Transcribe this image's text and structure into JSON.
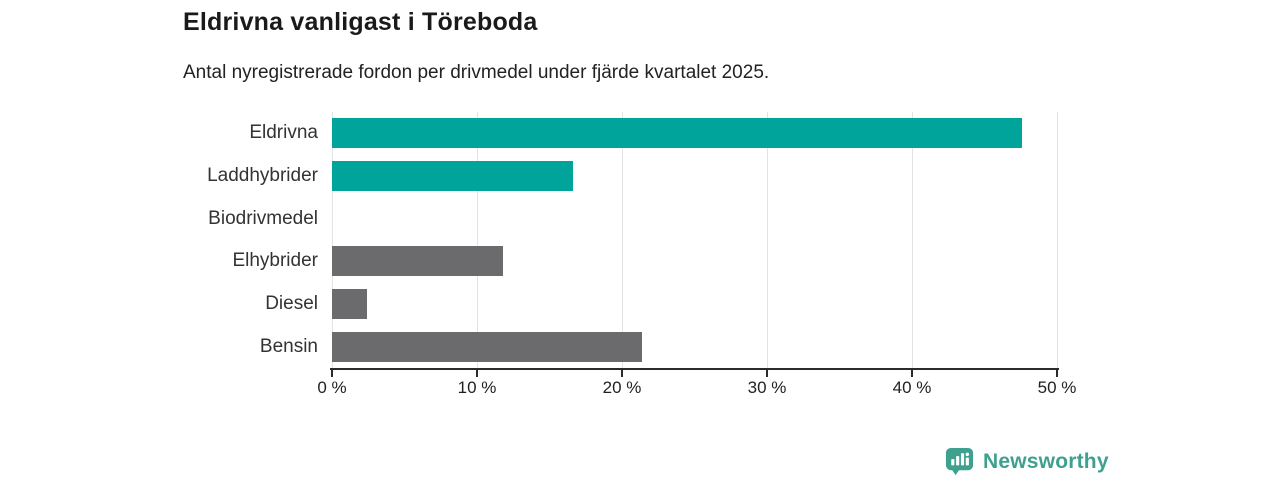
{
  "header": {
    "title": "Eldrivna vanligast i Töreboda",
    "subtitle": "Antal nyregistrerade fordon per drivmedel under fjärde kvartalet 2025."
  },
  "chart_data": {
    "type": "bar",
    "orientation": "horizontal",
    "title": "Eldrivna vanligast i Töreboda",
    "subtitle": "Antal nyregistrerade fordon per drivmedel under fjärde kvartalet 2025.",
    "categories": [
      "Eldrivna",
      "Laddhybrider",
      "Biodrivmedel",
      "Elhybrider",
      "Diesel",
      "Bensin"
    ],
    "values": [
      47.6,
      16.6,
      0,
      11.8,
      2.4,
      21.4
    ],
    "unit": "%",
    "bar_colors": [
      "#00a49a",
      "#00a49a",
      "#00a49a",
      "#6b6b6e",
      "#6b6b6e",
      "#6b6b6e"
    ],
    "xlabel": "",
    "ylabel": "",
    "xlim": [
      0,
      50
    ],
    "xticks": [
      0,
      10,
      20,
      30,
      40,
      50
    ],
    "xtick_labels": [
      "0 %",
      "10 %",
      "20 %",
      "30 %",
      "40 %",
      "50 %"
    ],
    "grid": true,
    "legend": false
  },
  "branding": {
    "logo_label": "Newsworthy",
    "logo_icon": "newsworthy-bar-chart-pin-icon",
    "logo_color": "#3fa08f"
  },
  "colors": {
    "teal": "#00a49a",
    "gray": "#6b6b6e",
    "axis": "#2b2b2b",
    "gridline": "#e3e3e3",
    "title_text": "#1a1a1a",
    "label_text": "#333333"
  }
}
